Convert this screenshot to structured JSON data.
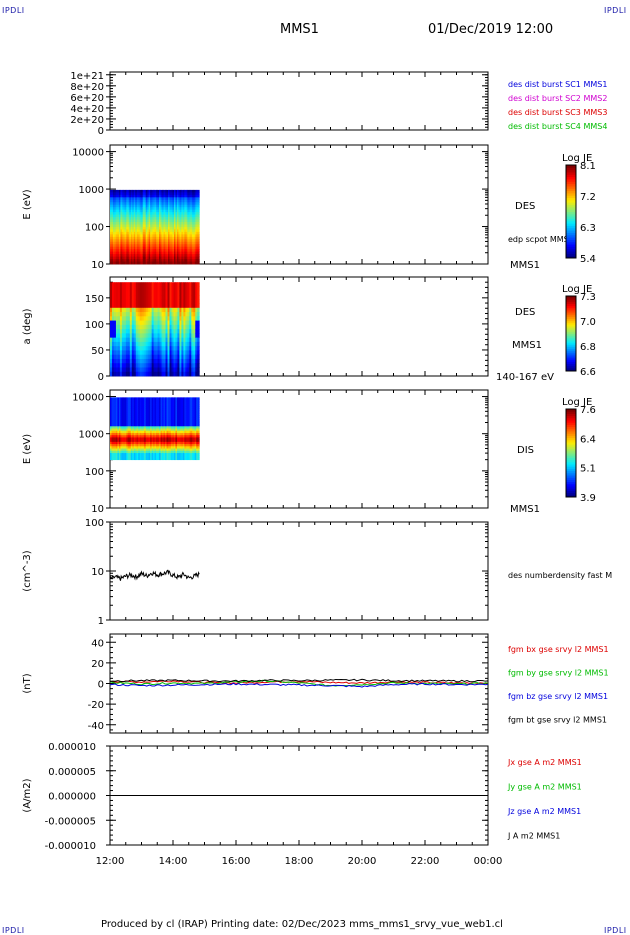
{
  "header": {
    "corner_label": "IPDLI",
    "spacecraft": "MMS1",
    "datetime": "01/Dec/2019 12:00"
  },
  "footer": {
    "text": "Produced by cl (IRAP)   Printing date: 02/Dec/2023   mms_mms1_srvy_vue_web1.cl"
  },
  "colors": {
    "blue": "#0000dd",
    "magenta": "#d000d0",
    "red": "#dd0000",
    "green": "#00bb00",
    "black": "#000000"
  },
  "chart_data": [
    {
      "type": "line",
      "panel": "burst flags",
      "ylabel": "",
      "ylim": [
        0,
        1.05e+21
      ],
      "yticks": [
        "0",
        "2e+20",
        "4e+20",
        "6e+20",
        "8e+20",
        "1e+21"
      ],
      "series": [
        {
          "name": "des dist burst SC1 MMS1",
          "color": "#0000dd"
        },
        {
          "name": "des dist burst SC2 MMS2",
          "color": "#d000d0"
        },
        {
          "name": "des dist burst SC3 MMS3",
          "color": "#dd0000"
        },
        {
          "name": "des dist burst SC4 MMS4",
          "color": "#00bb00"
        }
      ],
      "baseline": 0
    },
    {
      "type": "heatmap",
      "panel": "DES energy spectrogram",
      "ylabel": "E (eV)",
      "yscale": "log",
      "ylim": [
        10,
        15000
      ],
      "yticks": [
        "10",
        "100",
        "1000",
        "10000"
      ],
      "data_x_range": [
        "12:00",
        "14:50"
      ],
      "data_y_range": [
        10,
        950
      ],
      "right_labels": [
        "DES",
        "edp scpot MMS1",
        "MMS1"
      ],
      "colorbar": {
        "title": "Log JE",
        "ticks": [
          "8.1",
          "7.2",
          "6.3",
          "5.4"
        ],
        "min": 5.4,
        "max": 8.1
      },
      "profile": "red-high at low energies (10-60 eV), yellow/green ~100-300 eV, cyan/blue at top near 1000 eV"
    },
    {
      "type": "heatmap",
      "panel": "DES pitch angle",
      "ylabel": "a (deg)",
      "ylim": [
        0,
        190
      ],
      "yticks": [
        "0",
        "50",
        "100",
        "150"
      ],
      "data_x_range": [
        "12:00",
        "14:50"
      ],
      "data_y_range": [
        0,
        180
      ],
      "right_labels": [
        "DES",
        "MMS1",
        "140-167 eV"
      ],
      "colorbar": {
        "title": "Log JE",
        "ticks": [
          "7.3",
          "7.0",
          "6.8",
          "6.6"
        ],
        "min": 6.6,
        "max": 7.3
      },
      "profile": "red near 150-180 deg, green/yellow in middle, blue patches near 90 deg at edges"
    },
    {
      "type": "heatmap",
      "panel": "DIS energy spectrogram",
      "ylabel": "E (eV)",
      "yscale": "log",
      "ylim": [
        10,
        15000
      ],
      "yticks": [
        "10",
        "100",
        "1000",
        "10000"
      ],
      "data_x_range": [
        "12:00",
        "14:50"
      ],
      "data_y_range": [
        200,
        9500
      ],
      "right_labels": [
        "DIS",
        "MMS1"
      ],
      "colorbar": {
        "title": "Log JE",
        "ticks": [
          "7.6",
          "6.4",
          "5.1",
          "3.9"
        ],
        "min": 3.9,
        "max": 7.6
      },
      "profile": "red band near 500-900 eV, green/cyan 250-500 eV, blue above 2000 eV"
    },
    {
      "type": "line",
      "panel": "density",
      "ylabel": "(cm^-3)",
      "yscale": "log",
      "ylim": [
        1,
        100
      ],
      "yticks": [
        "1",
        "10",
        "100"
      ],
      "series": [
        {
          "name": "des numberdensity fast M",
          "color": "#000000",
          "x": [
            "12:00",
            "12:10",
            "12:20",
            "12:30",
            "12:40",
            "12:50",
            "13:00",
            "13:10",
            "13:20",
            "13:30",
            "13:40",
            "13:50",
            "14:00",
            "14:10",
            "14:20",
            "14:30",
            "14:40",
            "14:50"
          ],
          "values": [
            6.8,
            7.5,
            7.0,
            7.8,
            8.3,
            7.6,
            8.8,
            8.0,
            9.2,
            8.4,
            8.8,
            9.4,
            8.2,
            7.4,
            8.6,
            7.2,
            7.8,
            8.6
          ]
        }
      ]
    },
    {
      "type": "line",
      "panel": "magnetic field",
      "ylabel": "(nT)",
      "ylim": [
        -48,
        48
      ],
      "yticks": [
        "-40",
        "-20",
        "0",
        "20",
        "40"
      ],
      "x": [
        "12:00",
        "13:00",
        "14:00",
        "15:00",
        "16:00",
        "17:00",
        "18:00",
        "19:00",
        "20:00",
        "21:00",
        "22:00",
        "23:00",
        "00:00"
      ],
      "series": [
        {
          "name": "fgm bx gse srvy l2 MMS1",
          "color": "#dd0000",
          "values": [
            2.0,
            1.5,
            2.5,
            1.0,
            0.5,
            1.5,
            2.0,
            1.0,
            0.5,
            1.5,
            1.0,
            0.5,
            0.8
          ]
        },
        {
          "name": "fgm by gse srvy l2 MMS1",
          "color": "#00bb00",
          "values": [
            1.0,
            -0.5,
            0.5,
            0.0,
            1.5,
            2.5,
            0.5,
            -2.0,
            -1.0,
            0.5,
            0.0,
            -0.5,
            0.3
          ]
        },
        {
          "name": "fgm bz gse srvy l2 MMS1",
          "color": "#0000dd",
          "values": [
            -1.0,
            -2.0,
            -1.5,
            -1.0,
            -0.5,
            -1.0,
            -1.5,
            -2.0,
            -3.0,
            -1.0,
            -0.5,
            -1.0,
            -0.8
          ]
        },
        {
          "name": "fgm bt gse srvy l2 MMS1",
          "color": "#000000",
          "values": [
            2.5,
            2.8,
            3.0,
            2.6,
            2.4,
            3.0,
            2.8,
            3.2,
            3.4,
            2.8,
            2.6,
            2.4,
            2.5
          ]
        }
      ]
    },
    {
      "type": "line",
      "panel": "current density",
      "ylabel": "(A/m2)",
      "ylim": [
        -1e-05,
        1e-05
      ],
      "yticks": [
        "-0.000010",
        "-0.000005",
        "0.000000",
        "0.000005",
        "0.000010"
      ],
      "x": [
        "12:00",
        "13:00",
        "14:00",
        "15:00",
        "16:00",
        "17:00",
        "18:00",
        "19:00",
        "20:00",
        "21:00",
        "22:00",
        "23:00",
        "00:00"
      ],
      "series": [
        {
          "name": "Jx gse A m2 MMS1",
          "color": "#dd0000",
          "values": [
            0,
            0,
            0,
            0,
            0,
            0,
            0,
            0,
            0,
            0,
            0,
            0,
            0
          ]
        },
        {
          "name": "Jy gse A m2 MMS1",
          "color": "#00bb00",
          "values": [
            0,
            0,
            0,
            0,
            0,
            0,
            0,
            0,
            0,
            0,
            0,
            0,
            0
          ]
        },
        {
          "name": "Jz gse A m2 MMS1",
          "color": "#0000dd",
          "values": [
            0,
            0,
            0,
            0,
            0,
            0,
            0,
            0,
            0,
            0,
            0,
            0,
            0
          ]
        },
        {
          "name": "J A m2 MMS1",
          "color": "#000000",
          "values": [
            0,
            0,
            0,
            0,
            0,
            0,
            0,
            0,
            0,
            0,
            0,
            0,
            0
          ]
        }
      ]
    }
  ],
  "time_axis": {
    "ticks": [
      "12:00",
      "14:00",
      "16:00",
      "18:00",
      "20:00",
      "22:00",
      "00:00"
    ]
  }
}
